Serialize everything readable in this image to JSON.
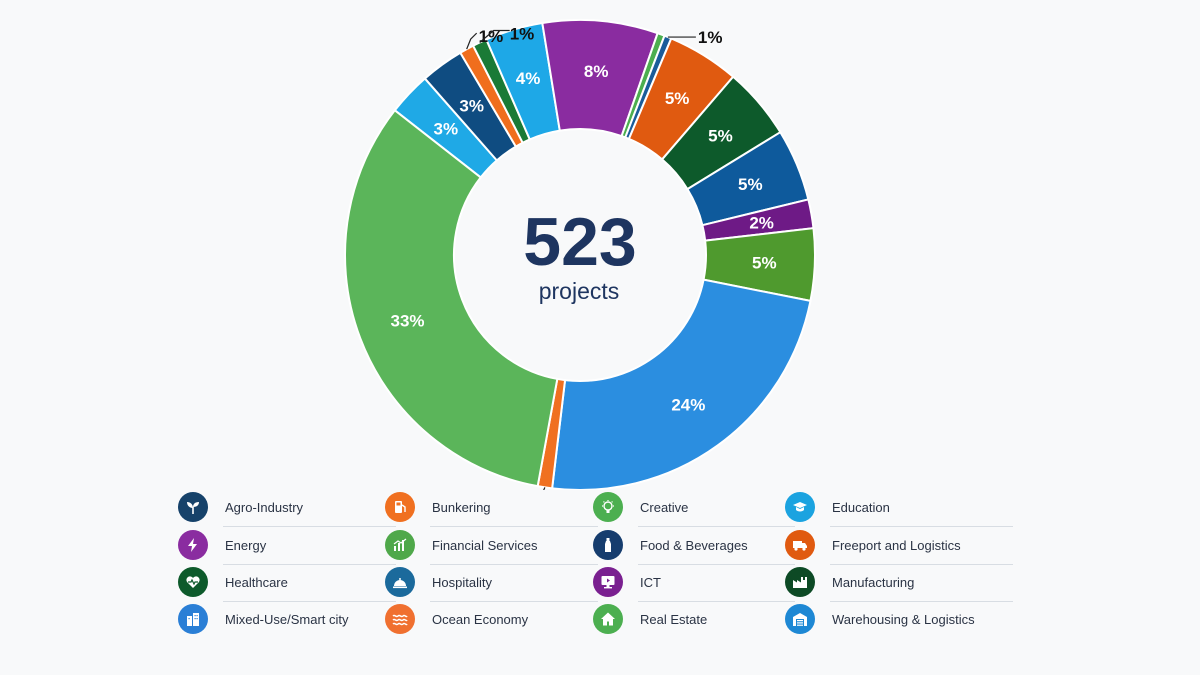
{
  "center": {
    "value": "523",
    "unit": "projects"
  },
  "colors": {
    "center_text": "#1e3560",
    "label_light": "#ffffff",
    "label_dark": "#111111"
  },
  "chart_data": {
    "type": "pie",
    "variant": "donut",
    "total": 523,
    "slices": [
      {
        "label": "Education",
        "value": 3,
        "display": "3%",
        "color": "#1fa9e6",
        "label_style": "inside"
      },
      {
        "label": "Agro-Industry",
        "value": 3,
        "display": "3%",
        "color": "#0f4c81",
        "label_style": "inside"
      },
      {
        "label": "Bunkering",
        "value": 1,
        "display": "1%",
        "color": "#f06e1d",
        "label_style": "callout-top-left"
      },
      {
        "label": "Manufacturing",
        "value": 1,
        "display": "1%",
        "color": "#1a7a36",
        "label_style": "callout-top-right"
      },
      {
        "label": "Education",
        "value": 4,
        "display": "4%",
        "color": "#1ea8e7",
        "label_style": "inside"
      },
      {
        "label": "Energy",
        "value": 8,
        "display": "8%",
        "color": "#8a2ca0",
        "label_style": "inside"
      },
      {
        "label": "Real Estate",
        "value": 0.5,
        "display": "",
        "color": "#4cae4f",
        "label_style": "none"
      },
      {
        "label": "Agro-Industry",
        "value": 0.5,
        "display": "1%",
        "color": "#1a5c9a",
        "label_style": "callout-right"
      },
      {
        "label": "Freeport and Logistics",
        "value": 5,
        "display": "5%",
        "color": "#e05a10",
        "label_style": "inside"
      },
      {
        "label": "Manufacturing",
        "value": 5,
        "display": "5%",
        "color": "#0d5a2b",
        "label_style": "inside"
      },
      {
        "label": "Agro-Industry",
        "value": 5,
        "display": "5%",
        "color": "#0e5a9c",
        "label_style": "inside"
      },
      {
        "label": "Energy",
        "value": 2,
        "display": "2%",
        "color": "#6e1a86",
        "label_style": "inside"
      },
      {
        "label": "Financial Services",
        "value": 5,
        "display": "5%",
        "color": "#4f9a2e",
        "label_style": "inside"
      },
      {
        "label": "Mixed-Use/Smart city",
        "value": 24,
        "display": "24%",
        "color": "#2b8ee0",
        "label_style": "inside"
      },
      {
        "label": "Bunkering",
        "value": 1,
        "display": "1%",
        "color": "#f07020",
        "label_style": "callout-bottom-left"
      },
      {
        "label": "Real Estate",
        "value": 33,
        "display": "33%",
        "color": "#5bb55a",
        "label_style": "inside"
      }
    ],
    "legend": [
      {
        "label": "Agro-Industry",
        "color": "#16426a",
        "icon": "sprout-icon"
      },
      {
        "label": "Bunkering",
        "color": "#f07020",
        "icon": "fuel-pump-icon"
      },
      {
        "label": "Creative",
        "color": "#4caf50",
        "icon": "lightbulb-icon"
      },
      {
        "label": "Education",
        "color": "#1ba3e0",
        "icon": "graduation-cap-icon"
      },
      {
        "label": "Energy",
        "color": "#8a2ca0",
        "icon": "lightning-icon"
      },
      {
        "label": "Financial Services",
        "color": "#4fa84a",
        "icon": "bar-chart-icon"
      },
      {
        "label": "Food & Beverages",
        "color": "#163d6e",
        "icon": "bottle-icon"
      },
      {
        "label": "Freeport and Logistics",
        "color": "#e05a10",
        "icon": "truck-icon"
      },
      {
        "label": "Healthcare",
        "color": "#0d5a2b",
        "icon": "heart-pulse-icon"
      },
      {
        "label": "Hospitality",
        "color": "#1b6a9c",
        "icon": "service-bell-icon"
      },
      {
        "label": "ICT",
        "color": "#7a2090",
        "icon": "monitor-icon"
      },
      {
        "label": "Manufacturing",
        "color": "#0d4a25",
        "icon": "factory-icon"
      },
      {
        "label": "Mixed-Use/Smart city",
        "color": "#2a7fd6",
        "icon": "city-buildings-icon"
      },
      {
        "label": "Ocean Economy",
        "color": "#f07030",
        "icon": "waves-icon"
      },
      {
        "label": "Real Estate",
        "color": "#4caf50",
        "icon": "house-icon"
      },
      {
        "label": "Warehousing & Logistics",
        "color": "#1e88d4",
        "icon": "warehouse-icon"
      }
    ]
  }
}
